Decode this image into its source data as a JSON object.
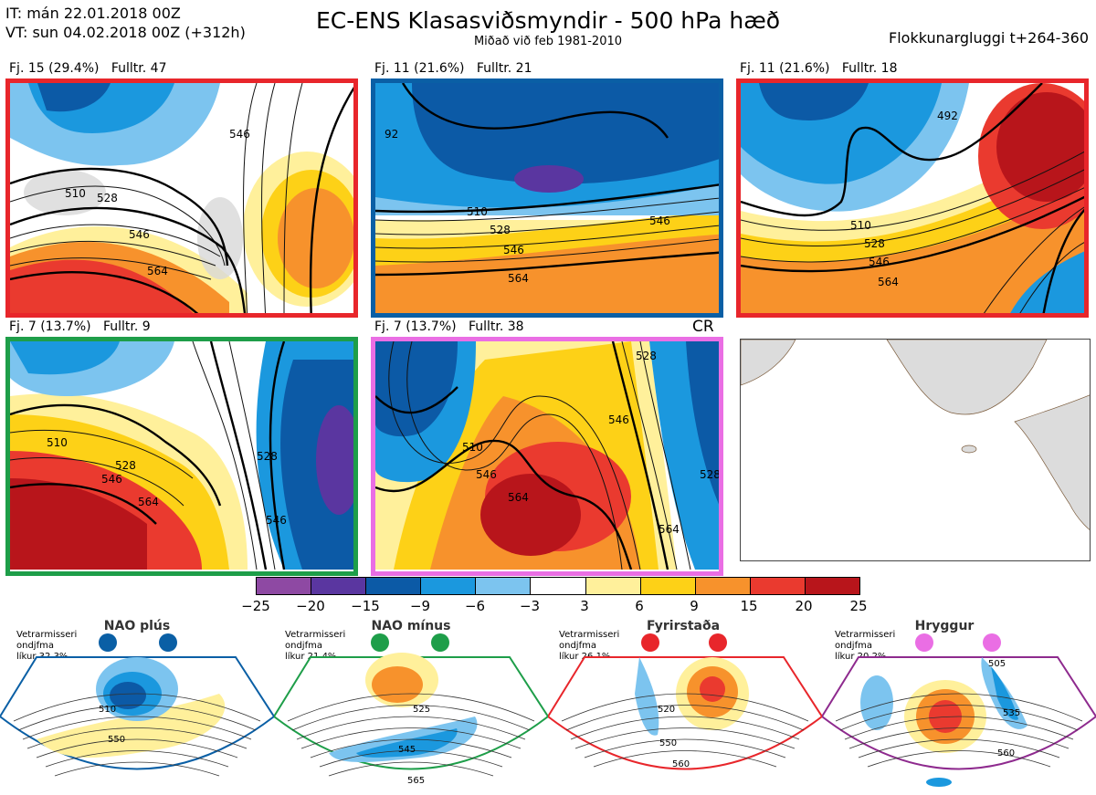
{
  "header": {
    "it_line": "IT: mán 22.01.2018 00Z",
    "vt_line": "VT: sun 04.02.2018 00Z  (+312h)",
    "title": "EC-ENS Klasasviðsmyndir - 500 hPa hæð",
    "subtitle": "Miðað við feb 1981-2010",
    "right_label": "Flokkunargluggi t+264-360"
  },
  "panels": [
    {
      "label": "Fj. 15 (29.4%)   Fulltr. 47",
      "border": "#e8262b",
      "contours": [
        "546",
        "528",
        "546",
        "564",
        "510",
        "528",
        "546",
        "54"
      ]
    },
    {
      "label": "Fj. 11 (21.6%)   Fulltr. 21",
      "border": "#0a5fa5",
      "contours": [
        "92",
        "510",
        "528",
        "546",
        "564",
        "528",
        "546"
      ]
    },
    {
      "label": "Fj. 11 (21.6%)   Fulltr. 18",
      "border": "#e8262b",
      "contours": [
        "492",
        "510",
        "528",
        "546",
        "564",
        "546",
        "564"
      ]
    },
    {
      "label": "Fj. 7 (13.7%)   Fulltr. 9",
      "border": "#1e9e49",
      "contours": [
        "510",
        "528",
        "546",
        "564",
        "528",
        "546"
      ]
    },
    {
      "label": "Fj. 7 (13.7%)   Fulltr. 38",
      "border": "#ea6ee4",
      "contours": [
        "528",
        "510",
        "546",
        "564",
        "564",
        "528",
        "546"
      ],
      "tag": "CR"
    }
  ],
  "colorbar": {
    "colors": [
      "#8e49a3",
      "#5a36a0",
      "#0c5aa6",
      "#1b98de",
      "#7cc4ef",
      "#ffffff",
      "#fff09b",
      "#fdd117",
      "#f7922c",
      "#ea3a2f",
      "#b8151b"
    ],
    "ticks": [
      "−25",
      "−20",
      "−15",
      "−9",
      "−6",
      "−3",
      "3",
      "6",
      "9",
      "15",
      "20",
      "25"
    ]
  },
  "regimes": [
    {
      "name": "NAO plús",
      "info": [
        "Vetrarmisseri",
        "ondjfma",
        "líkur 32,3%"
      ],
      "color": "#0a5fa5",
      "labels": [
        "510",
        "550"
      ]
    },
    {
      "name": "NAO mínus",
      "info": [
        "Vetrarmisseri",
        "ondjfma",
        "líkur 21,4%"
      ],
      "color": "#1e9e49",
      "labels": [
        "525",
        "545",
        "565"
      ]
    },
    {
      "name": "Fyrirstaða",
      "info": [
        "Vetrarmisseri",
        "ondjfma",
        "líkur 26,1%"
      ],
      "color": "#e8262b",
      "labels": [
        "520",
        "550",
        "560"
      ]
    },
    {
      "name": "Hryggur",
      "info": [
        "Vetrarmisseri",
        "ondjfma",
        "líkur 20,2%"
      ],
      "color": "#ea6ee4",
      "labels": [
        "505",
        "535",
        "560"
      ]
    }
  ]
}
